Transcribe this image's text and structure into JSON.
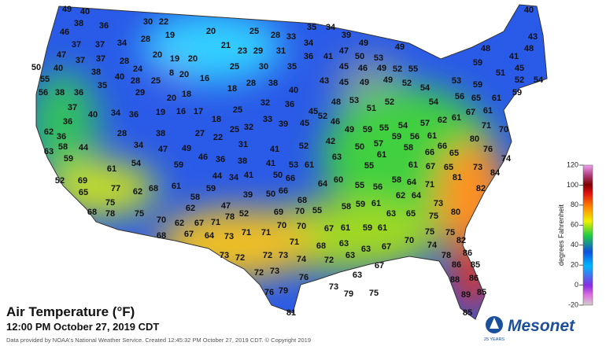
{
  "title": "Air Temperature (°F)",
  "subtitle": "12:00 PM October 27, 2019 CDT",
  "credit": "Data provided by NOAA's National Weather Service. Created 12:45:32 PM October 27, 2019 CDT. © Copyright 2019",
  "colorbar": {
    "label": "degrees Fahrenheit",
    "ticks": [
      -20,
      0,
      20,
      40,
      60,
      80,
      100,
      120
    ]
  },
  "logo": {
    "name": "Mesonet",
    "badge": "25 YEARS"
  },
  "stations": [
    49,
    40,
    38,
    36,
    30,
    22,
    20,
    25,
    28,
    33,
    35,
    34,
    39,
    40,
    46,
    28,
    19,
    34,
    49,
    49,
    43,
    48,
    48,
    37,
    37,
    34,
    21,
    23,
    29,
    31,
    36,
    41,
    47,
    50,
    53,
    47,
    37,
    37,
    28,
    20,
    19,
    20,
    25,
    30,
    35,
    45,
    46,
    49,
    52,
    55,
    59,
    41,
    51,
    45,
    52,
    54,
    40,
    38,
    24,
    8,
    20,
    40,
    28,
    25,
    16,
    18,
    28,
    38,
    40,
    43,
    45,
    49,
    49,
    52,
    54,
    53,
    59,
    50,
    55,
    56,
    38,
    36,
    35,
    29,
    20,
    18,
    37,
    45,
    32,
    36,
    48,
    53,
    51,
    52,
    54,
    56,
    65,
    61,
    59,
    67,
    61,
    19,
    16,
    17,
    25,
    40,
    34,
    36,
    36,
    28,
    38,
    18,
    33,
    39,
    45,
    52,
    46,
    49,
    59,
    55,
    54,
    57,
    62,
    61,
    62,
    36,
    27,
    22,
    25,
    32,
    42,
    50,
    57,
    59,
    56,
    61,
    66,
    71,
    70,
    63,
    58,
    44,
    34,
    47,
    49,
    31,
    41,
    52,
    63,
    61,
    58,
    66,
    65,
    80,
    76,
    74,
    59,
    54,
    59,
    46,
    36,
    38,
    41,
    53,
    61,
    55,
    61,
    67,
    65,
    73,
    84,
    61,
    52,
    69,
    44,
    34,
    41,
    50,
    66,
    64,
    60,
    55,
    56,
    58,
    64,
    71,
    81,
    82,
    65,
    77,
    62,
    68,
    61,
    59,
    39,
    50,
    66,
    58,
    62,
    75,
    78,
    68,
    75,
    47,
    52,
    69,
    70,
    68,
    55,
    58,
    59,
    61,
    62,
    64,
    73,
    80,
    63,
    65,
    75,
    70,
    62,
    67,
    71,
    78,
    70,
    70,
    67,
    61,
    59,
    61,
    68,
    67,
    64,
    73,
    71,
    71,
    71,
    68,
    63,
    70,
    75,
    75,
    82,
    63,
    67,
    74,
    78,
    86,
    73,
    72,
    72,
    73,
    74,
    72,
    63,
    67,
    72,
    73,
    76,
    63,
    86,
    85,
    88,
    86,
    73,
    79,
    75,
    76,
    79,
    89,
    85,
    81,
    85
  ]
}
